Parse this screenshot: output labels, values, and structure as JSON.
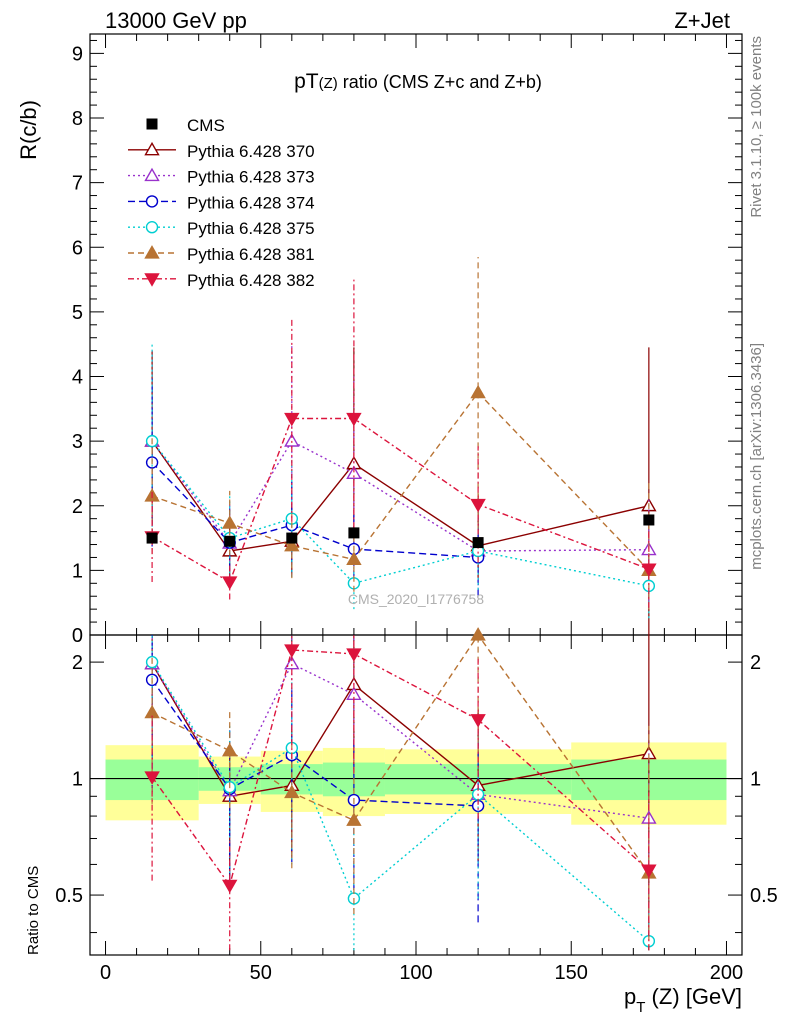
{
  "header": {
    "left": "13000 GeV pp",
    "right": "Z+Jet"
  },
  "side_labels": {
    "rivet": "Rivet 3.1.10, ≥ 100k events",
    "mcplots": "mcplots.cern.ch [arXiv:1306.3436]"
  },
  "watermark": "CMS_2020_I1776758",
  "colors": {
    "band_inner": "#99ff99",
    "band_outer": "#ffff99"
  },
  "chart_data": {
    "type": "line",
    "title_main": "pT",
    "title_sub": "(Z)",
    "title_rest": " ratio (CMS  Z+c and Z+b)",
    "ylabel": "R(c/b)",
    "ratio_ylabel": "Ratio to CMS",
    "xlabel_main": "p",
    "xlabel_sub": "T",
    "xlabel_rest": " (Z) [GeV]",
    "xlim": [
      -5,
      205
    ],
    "ylim": [
      0,
      9.3
    ],
    "ratio_ylim": [
      0.35,
      2.35
    ],
    "ratio_log": true,
    "x_ticks": [
      0,
      50,
      100,
      150,
      200
    ],
    "y_ticks": [
      0,
      1,
      2,
      3,
      4,
      5,
      6,
      7,
      8,
      9
    ],
    "ratio_ticks": [
      0.5,
      1,
      2
    ],
    "legend_position": "top-left",
    "bins": [
      [
        0,
        30
      ],
      [
        30,
        50
      ],
      [
        50,
        70
      ],
      [
        70,
        90
      ],
      [
        90,
        150
      ],
      [
        150,
        200
      ]
    ],
    "x": [
      15,
      40,
      60,
      80,
      120,
      175
    ],
    "data": {
      "name": "CMS",
      "values": [
        1.5,
        1.45,
        1.5,
        1.58,
        1.43,
        1.78
      ],
      "band_inner": [
        0.12,
        0.07,
        0.09,
        0.1,
        0.09,
        0.12
      ],
      "band_outer": [
        0.22,
        0.14,
        0.18,
        0.2,
        0.19,
        0.24
      ]
    },
    "series": [
      {
        "name": "Pythia 6.428 370",
        "color": "#8b0000",
        "dash": "",
        "marker": "triangle-up-open",
        "values": [
          3.0,
          1.3,
          1.45,
          2.65,
          1.38,
          2.0
        ],
        "err_low": [
          1.3,
          0.5,
          0.5,
          1.0,
          0.5,
          2.0
        ],
        "err_high": [
          1.4,
          0.5,
          0.6,
          1.8,
          0.8,
          2.45
        ],
        "ratio": [
          1.98,
          0.9,
          0.96,
          1.75,
          0.96,
          1.16
        ]
      },
      {
        "name": "Pythia 6.428 373",
        "color": "#9932cc",
        "dash": "2,3",
        "marker": "triangle-up-open",
        "values": [
          3.0,
          1.42,
          3.0,
          2.5,
          1.3,
          1.32
        ],
        "err_low": [
          1.4,
          0.6,
          1.5,
          1.0,
          0.6,
          0.8
        ],
        "err_high": [
          1.4,
          0.6,
          1.5,
          1.5,
          0.6,
          0.8
        ],
        "ratio": [
          1.98,
          0.93,
          1.98,
          1.65,
          0.91,
          0.79
        ]
      },
      {
        "name": "Pythia 6.428 374",
        "color": "#0000cd",
        "dash": "7,4",
        "marker": "circle-open",
        "values": [
          2.67,
          1.43,
          1.7,
          1.33,
          1.2,
          null
        ],
        "err_low": [
          1.3,
          0.6,
          0.8,
          0.6,
          0.6,
          0
        ],
        "err_high": [
          1.3,
          0.6,
          0.8,
          0.6,
          0.6,
          0
        ],
        "ratio": [
          1.8,
          0.94,
          1.15,
          0.88,
          0.85,
          null
        ]
      },
      {
        "name": "Pythia 6.428 375",
        "color": "#00ced1",
        "dash": "2,3",
        "marker": "circle-open",
        "values": [
          3.0,
          1.5,
          1.8,
          0.8,
          1.3,
          0.76
        ],
        "err_low": [
          1.4,
          0.7,
          0.9,
          0.4,
          0.6,
          0.5
        ],
        "err_high": [
          1.5,
          0.7,
          0.9,
          0.4,
          0.6,
          0.5
        ],
        "ratio": [
          2.0,
          0.95,
          1.2,
          0.49,
          0.91,
          0.38
        ]
      },
      {
        "name": "Pythia 6.428 381",
        "color": "#b87333",
        "dash": "6,4",
        "marker": "triangle-up-filled",
        "values": [
          2.15,
          1.73,
          1.38,
          1.17,
          3.75,
          1.0
        ],
        "err_low": [
          0.9,
          0.5,
          0.5,
          0.5,
          2.1,
          0.6
        ],
        "err_high": [
          0.9,
          0.5,
          0.5,
          0.5,
          2.1,
          1.4
        ],
        "ratio": [
          1.48,
          1.18,
          0.92,
          0.78,
          2.5,
          0.57
        ]
      },
      {
        "name": "Pythia 6.428 382",
        "color": "#dc143c",
        "dash": "6,3,2,3",
        "marker": "triangle-down-filled",
        "values": [
          1.52,
          0.82,
          3.35,
          3.35,
          2.02,
          1.02
        ],
        "err_low": [
          0.7,
          0.27,
          1.6,
          1.7,
          0.9,
          0.6
        ],
        "err_high": [
          0.7,
          0.27,
          1.55,
          2.15,
          0.9,
          0.6
        ],
        "ratio": [
          1.01,
          0.53,
          2.15,
          2.1,
          1.42,
          0.58
        ]
      }
    ]
  }
}
